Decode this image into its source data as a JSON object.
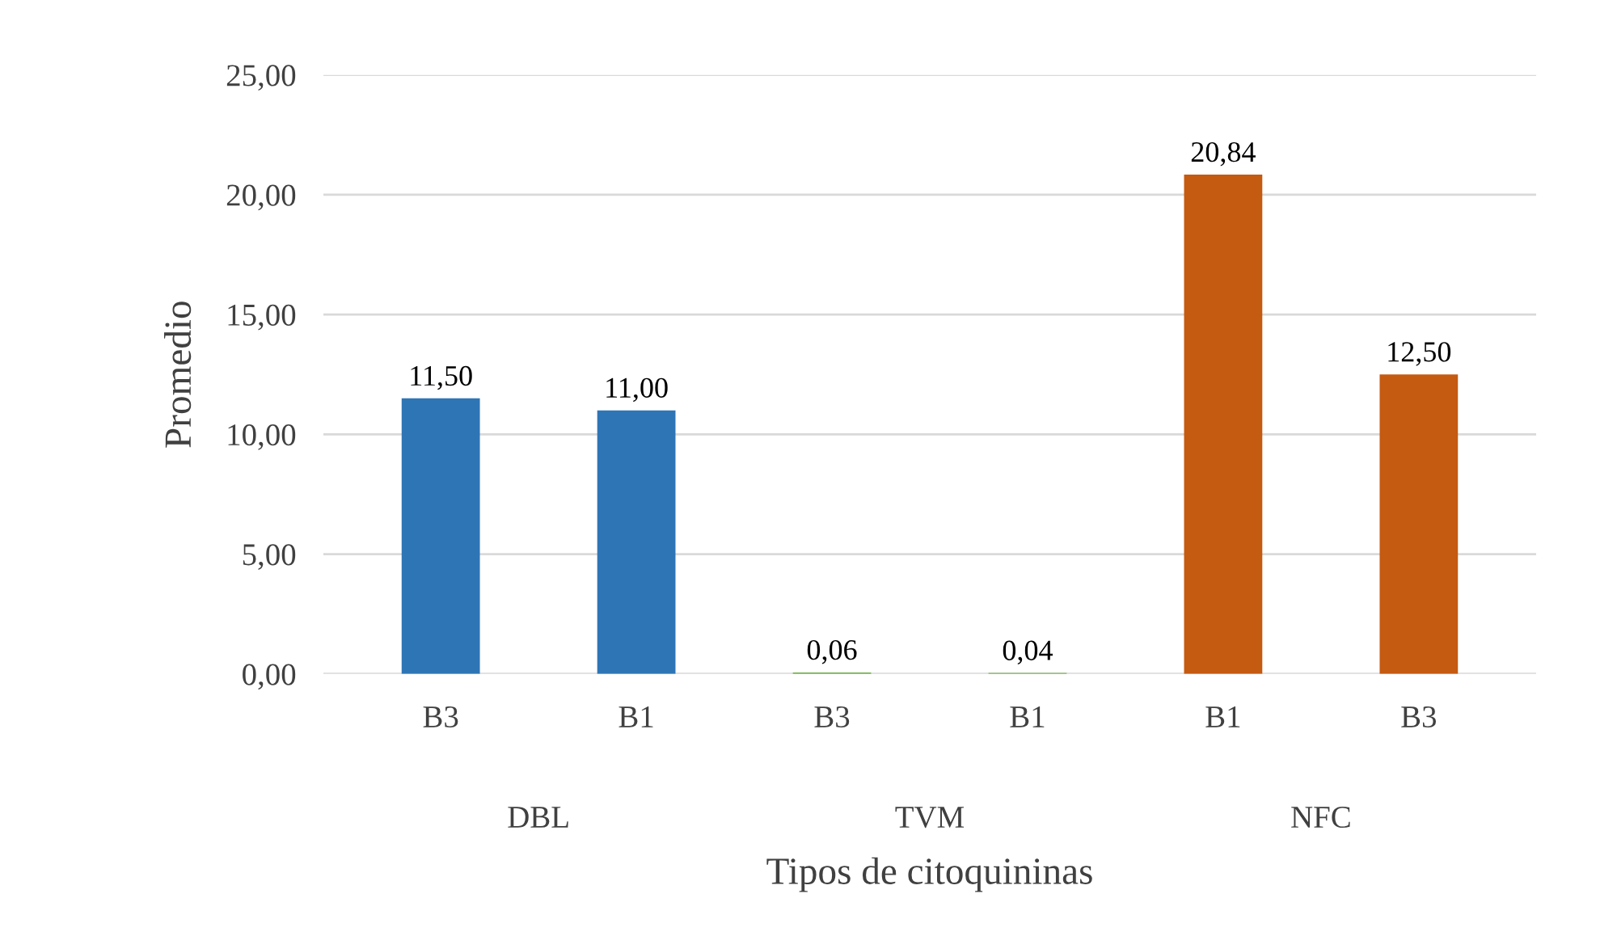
{
  "chart_data": {
    "type": "bar",
    "xlabel": "Tipos de citoquininas",
    "ylabel": "Promedio",
    "categories": [
      "B3",
      "B1",
      "B3",
      "B1",
      "B1",
      "B3"
    ],
    "values": [
      11.5,
      11.0,
      0.06,
      0.04,
      20.84,
      12.5
    ],
    "colors": [
      "#2e75b6",
      "#2e75b6",
      "#70ad47",
      "#70ad47",
      "#c55a11",
      "#c55a11"
    ],
    "value_labels": [
      "11,50",
      "11,00",
      "0,06",
      "0,04",
      "20,84",
      "12,50"
    ],
    "annotations": [
      "DBL",
      "TVM",
      "NFC"
    ],
    "ylim": [
      0,
      25
    ],
    "yticks": [
      {
        "value": 0,
        "label": "0,00"
      },
      {
        "value": 5,
        "label": "5,00"
      },
      {
        "value": 10,
        "label": "10,00"
      },
      {
        "value": 15,
        "label": "15,00"
      },
      {
        "value": 20,
        "label": "20,00"
      },
      {
        "value": 25,
        "label": "25,00"
      }
    ],
    "grid": "y",
    "legend": false
  }
}
